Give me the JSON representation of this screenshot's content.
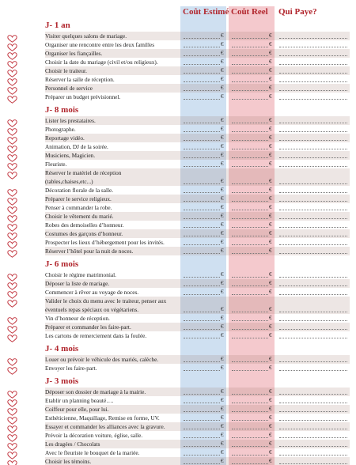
{
  "header": {
    "estimate": "Coût Estimé",
    "real": "Coût Reel",
    "payer": "Qui Paye?",
    "currency": "€"
  },
  "sections": [
    {
      "title": "J- 1 an",
      "items": [
        "Visiter quelques salons de mariage.",
        "Organiser une rencontre entre les deux familles",
        "Organiser les fiançailles.",
        "Choisir la date du mariage (civil et/ou religieux).",
        "Choisir le traiteur.",
        "Réserver la salle de réception.",
        "Personnel de service",
        "Préparer un budget prévisionnel."
      ]
    },
    {
      "title": "J- 8 mois",
      "items": [
        "Lister les prestataires.",
        "Photographe.",
        "Reportage vidéo.",
        "Animation, DJ de la soirée.",
        "Musiciens, Magicien.",
        "Fleuriste.",
        [
          "Réserver le matériel de réception",
          "(tables,chaises,etc...)"
        ],
        "Décoration florale de la salle.",
        "Préparer le service religieux.",
        "Penser à commander la robe.",
        "Choisir le vêtement du marié.",
        "Robes des demoiselles d’honneur.",
        "Costumes des garçons d’honneur.",
        "Prospecter les lieux d’hébergement pour les invités.",
        "Réserver l’hôtel pour la nuit de noces."
      ]
    },
    {
      "title": "J- 6 mois",
      "items": [
        "Choisir le régime matrimonial.",
        "Déposer la liste de mariage.",
        "Commencer à rêver au voyage de noces.",
        [
          "Valider le choix du menu avec le traiteur, penser aux",
          "éventuels repas spéciaux ou végétariens."
        ],
        "Vin d’honneur de réception.",
        "Préparer et commander les faire-part.",
        "Les cartons de remerciement dans la foulée."
      ]
    },
    {
      "title": "J- 4 mois",
      "items": [
        "Louer ou prévoir le véhicule des mariés, calèche.",
        "Envoyer les faire-part."
      ]
    },
    {
      "title": "J- 3 mois",
      "items": [
        "Déposer son dossier de mariage à la mairie.",
        "Etablir un planning beauté….",
        "Coiffeur pour elle, pour lui.",
        "Esthéticienne, Maquillage, Remise en forme, UV.",
        "Essayer et commander les alliances avec la gravure.",
        "Prévoir la décoration voiture, église, salle.",
        "Les dragées / Chocolats",
        "Avec le fleuriste le bouquet de la mariée.",
        "Choisir les témoins."
      ]
    }
  ]
}
